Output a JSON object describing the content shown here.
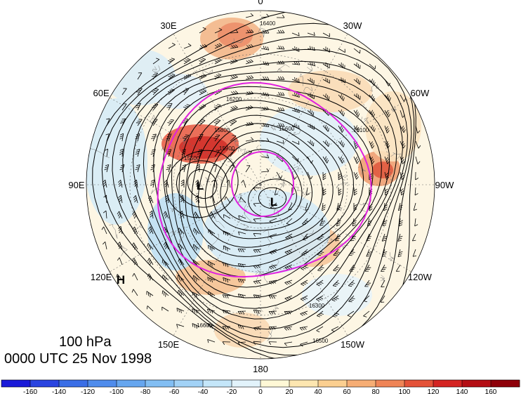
{
  "map": {
    "projection": "north polar stereographic",
    "field": "100 hPa geopotential height contours, wind barbs, shaded anomaly",
    "longitude_labels": [
      {
        "text": "0",
        "lon": 0
      },
      {
        "text": "30W",
        "lon": -30
      },
      {
        "text": "60W",
        "lon": -60
      },
      {
        "text": "90W",
        "lon": -90
      },
      {
        "text": "120W",
        "lon": -120
      },
      {
        "text": "150W",
        "lon": -150
      },
      {
        "text": "180",
        "lon": 180
      },
      {
        "text": "150E",
        "lon": 150
      },
      {
        "text": "120E",
        "lon": 120
      },
      {
        "text": "90E",
        "lon": 90
      },
      {
        "text": "60E",
        "lon": 60
      },
      {
        "text": "30E",
        "lon": 30
      }
    ],
    "contour_labels": [
      "16400",
      "15800",
      "15500",
      "15900",
      "16300",
      "16100",
      "15600",
      "16500",
      "16600",
      "16200"
    ],
    "pressure_systems": [
      {
        "text": "L",
        "kind": "low"
      },
      {
        "text": "L",
        "kind": "low"
      },
      {
        "text": "H",
        "kind": "high"
      }
    ],
    "highlight_color": "#e020e0"
  },
  "info": {
    "level": "100 hPa",
    "date": "0000 UTC 25 Nov 1998"
  },
  "colorbar": {
    "ticks": [
      "-160",
      "-140",
      "-120",
      "-100",
      "-80",
      "-60",
      "-40",
      "-20",
      "0",
      "20",
      "40",
      "60",
      "80",
      "100",
      "120",
      "140",
      "160"
    ],
    "colors": [
      "#1a1ad8",
      "#2a44e0",
      "#3a6ee6",
      "#4f8cec",
      "#66a6ef",
      "#82bef3",
      "#a2d2f6",
      "#c4e6f9",
      "#e2f3fb",
      "#fff8d6",
      "#fde6b0",
      "#fbcf90",
      "#f6ad74",
      "#ef8456",
      "#e45238",
      "#d42422",
      "#b40e14",
      "#8e0009"
    ]
  }
}
